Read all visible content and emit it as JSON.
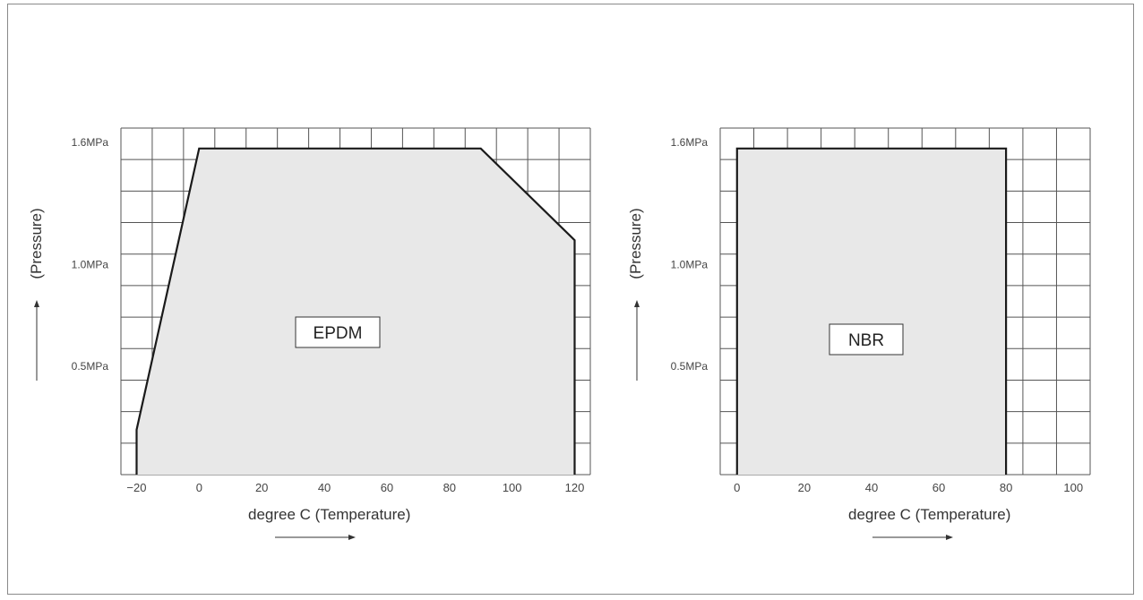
{
  "colors": {
    "grid": "#555555",
    "fill": "#e8e8e8",
    "outline": "#1a1a1a",
    "text": "#333333"
  },
  "chart_data": [
    {
      "type": "area",
      "region_label": "EPDM",
      "xlabel": "degree C (Temperature)",
      "ylabel": "(Pressure)",
      "xlim": [
        -25,
        125
      ],
      "ylim": [
        0,
        1.7
      ],
      "grid": true,
      "xticks": [
        {
          "value": -20,
          "label": "−20"
        },
        {
          "value": 0,
          "label": "0"
        },
        {
          "value": 20,
          "label": "20"
        },
        {
          "value": 40,
          "label": "40"
        },
        {
          "value": 60,
          "label": "60"
        },
        {
          "value": 80,
          "label": "80"
        },
        {
          "value": 100,
          "label": "100"
        },
        {
          "value": 120,
          "label": "120"
        }
      ],
      "yticks": [
        {
          "value": 0.5,
          "label": "0.5MPa"
        },
        {
          "value": 1.0,
          "label": "1.0MPa"
        },
        {
          "value": 1.6,
          "label": "1.6MPa"
        }
      ],
      "x": [
        -20,
        -20,
        0,
        90,
        120,
        120
      ],
      "y": [
        0,
        0.22,
        1.6,
        1.6,
        1.15,
        0
      ]
    },
    {
      "type": "area",
      "region_label": "NBR",
      "xlabel": "degree C (Temperature)",
      "ylabel": "(Pressure)",
      "xlim": [
        -5,
        105
      ],
      "ylim": [
        0,
        1.7
      ],
      "grid": true,
      "xticks": [
        {
          "value": 0,
          "label": "0"
        },
        {
          "value": 20,
          "label": "20"
        },
        {
          "value": 40,
          "label": "40"
        },
        {
          "value": 60,
          "label": "60"
        },
        {
          "value": 80,
          "label": "80"
        },
        {
          "value": 100,
          "label": "100"
        }
      ],
      "yticks": [
        {
          "value": 0.5,
          "label": "0.5MPa"
        },
        {
          "value": 1.0,
          "label": "1.0MPa"
        },
        {
          "value": 1.6,
          "label": "1.6MPa"
        }
      ],
      "x": [
        0,
        0,
        80,
        80
      ],
      "y": [
        0,
        1.6,
        1.6,
        0
      ]
    }
  ]
}
